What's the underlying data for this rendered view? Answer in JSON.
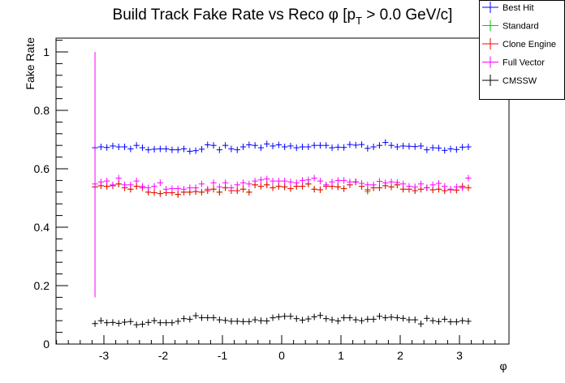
{
  "chart_data": {
    "type": "scatter",
    "title": "Build Track Fake Rate vs Reco φ [p",
    "title_sub": "T",
    "title_tail": " > 0.0 GeV/c]",
    "xlabel": "φ",
    "ylabel": "Fake Rate",
    "xlim": [
      -3.84,
      3.84
    ],
    "ylim": [
      0,
      1.05
    ],
    "xticks": [
      -3,
      -2,
      -1,
      0,
      1,
      2,
      3
    ],
    "xtick_labels": [
      "-3",
      "-2",
      "-1",
      "0",
      "1",
      "2",
      "3"
    ],
    "yticks": [
      0,
      0.2,
      0.4,
      0.6,
      0.8,
      1
    ],
    "ytick_labels": [
      "0",
      "0.2",
      "0.4",
      "0.6",
      "0.8",
      "1"
    ],
    "grid": false,
    "legend_position": "top-right",
    "bins": {
      "first_center": -3.15,
      "width": 0.1
    },
    "series": [
      {
        "name": "Best Hit",
        "color": "#0000ff",
        "values": [
          0.672,
          0.675,
          0.673,
          0.678,
          0.675,
          0.675,
          0.668,
          0.68,
          0.672,
          0.665,
          0.667,
          0.668,
          0.668,
          0.665,
          0.665,
          0.668,
          0.66,
          0.662,
          0.667,
          0.682,
          0.68,
          0.665,
          0.68,
          0.668,
          0.665,
          0.675,
          0.682,
          0.68,
          0.672,
          0.685,
          0.678,
          0.682,
          0.675,
          0.678,
          0.672,
          0.675,
          0.675,
          0.68,
          0.68,
          0.68,
          0.672,
          0.674,
          0.673,
          0.683,
          0.681,
          0.683,
          0.67,
          0.675,
          0.68,
          0.69,
          0.68,
          0.675,
          0.678,
          0.677,
          0.676,
          0.678,
          0.665,
          0.672,
          0.671,
          0.663,
          0.668,
          0.666,
          0.674,
          0.675
        ]
      },
      {
        "name": "Standard",
        "color": "#00cc00",
        "values": [
          0.538,
          0.542,
          0.54,
          0.542,
          0.548,
          0.535,
          0.53,
          0.54,
          0.535,
          0.52,
          0.518,
          0.515,
          0.518,
          0.518,
          0.512,
          0.52,
          0.52,
          0.522,
          0.52,
          0.525,
          0.53,
          0.52,
          0.535,
          0.525,
          0.525,
          0.53,
          0.52,
          0.545,
          0.54,
          0.545,
          0.535,
          0.54,
          0.538,
          0.532,
          0.54,
          0.54,
          0.548,
          0.53,
          0.528,
          0.54,
          0.54,
          0.538,
          0.532,
          0.545,
          0.555,
          0.54,
          0.522,
          0.535,
          0.535,
          0.542,
          0.538,
          0.545,
          0.53,
          0.53,
          0.525,
          0.53,
          0.535,
          0.528,
          0.53,
          0.525,
          0.528,
          0.527,
          0.54,
          0.535
        ]
      },
      {
        "name": "Clone Engine",
        "color": "#ff0000",
        "values": [
          0.538,
          0.542,
          0.54,
          0.542,
          0.548,
          0.535,
          0.53,
          0.54,
          0.535,
          0.52,
          0.518,
          0.515,
          0.518,
          0.518,
          0.512,
          0.52,
          0.52,
          0.522,
          0.52,
          0.525,
          0.53,
          0.52,
          0.535,
          0.525,
          0.525,
          0.53,
          0.52,
          0.545,
          0.54,
          0.545,
          0.535,
          0.54,
          0.538,
          0.532,
          0.54,
          0.54,
          0.548,
          0.53,
          0.528,
          0.54,
          0.54,
          0.538,
          0.532,
          0.545,
          0.555,
          0.54,
          0.528,
          0.535,
          0.535,
          0.542,
          0.538,
          0.545,
          0.53,
          0.53,
          0.525,
          0.53,
          0.535,
          0.528,
          0.53,
          0.525,
          0.528,
          0.527,
          0.54,
          0.535
        ]
      },
      {
        "name": "Full Vector",
        "color": "#ff00ff",
        "values": [
          0.548,
          0.555,
          0.558,
          0.545,
          0.568,
          0.545,
          0.545,
          0.558,
          0.54,
          0.535,
          0.54,
          0.552,
          0.53,
          0.532,
          0.532,
          0.53,
          0.535,
          0.535,
          0.548,
          0.53,
          0.552,
          0.538,
          0.552,
          0.535,
          0.545,
          0.552,
          0.548,
          0.558,
          0.562,
          0.565,
          0.558,
          0.558,
          0.558,
          0.555,
          0.552,
          0.56,
          0.562,
          0.568,
          0.558,
          0.545,
          0.555,
          0.56,
          0.56,
          0.555,
          0.555,
          0.55,
          0.545,
          0.545,
          0.557,
          0.552,
          0.555,
          0.553,
          0.548,
          0.54,
          0.538,
          0.548,
          0.535,
          0.545,
          0.55,
          0.54,
          0.53,
          0.538,
          0.535,
          0.568
        ],
        "first_point_error": [
          0.16,
          1.0
        ]
      },
      {
        "name": "CMSSW",
        "color": "#000000",
        "values": [
          0.07,
          0.08,
          0.073,
          0.074,
          0.071,
          0.075,
          0.077,
          0.066,
          0.068,
          0.074,
          0.08,
          0.073,
          0.073,
          0.073,
          0.078,
          0.087,
          0.085,
          0.097,
          0.09,
          0.09,
          0.09,
          0.083,
          0.081,
          0.078,
          0.078,
          0.077,
          0.077,
          0.083,
          0.08,
          0.079,
          0.09,
          0.093,
          0.095,
          0.095,
          0.087,
          0.082,
          0.086,
          0.093,
          0.098,
          0.087,
          0.083,
          0.079,
          0.09,
          0.09,
          0.083,
          0.08,
          0.085,
          0.085,
          0.095,
          0.09,
          0.092,
          0.09,
          0.088,
          0.083,
          0.083,
          0.069,
          0.088,
          0.08,
          0.077,
          0.085,
          0.076,
          0.076,
          0.08,
          0.078
        ]
      }
    ]
  }
}
